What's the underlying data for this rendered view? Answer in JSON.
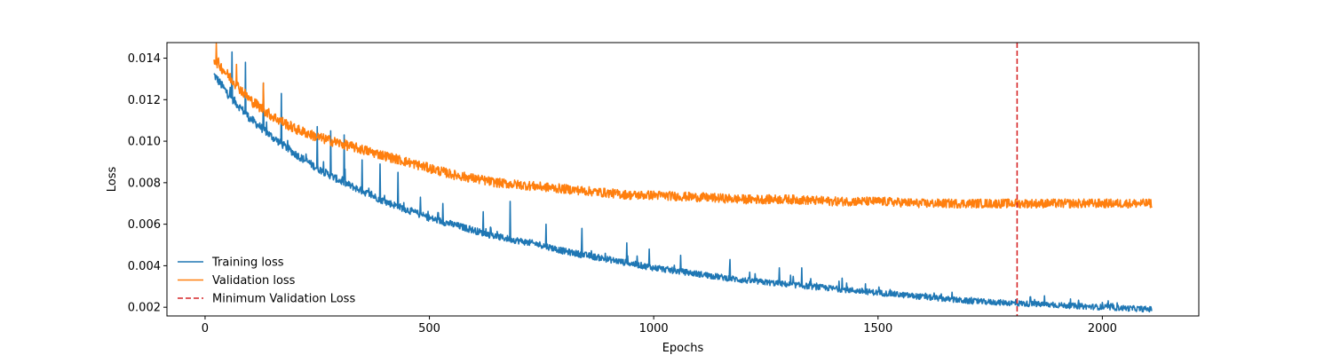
{
  "chart_data": {
    "type": "line",
    "title": "",
    "xlabel": "Epochs",
    "ylabel": "Loss",
    "xlim": [
      -85,
      2215
    ],
    "ylim": [
      0.00158,
      0.01475
    ],
    "x_ticks": [
      0,
      500,
      1000,
      1500,
      2000
    ],
    "x_tick_labels": [
      "0",
      "500",
      "1000",
      "1500",
      "2000"
    ],
    "y_ticks": [
      0.002,
      0.004,
      0.006,
      0.008,
      0.01,
      0.012,
      0.014
    ],
    "y_tick_labels": [
      "0.002",
      "0.004",
      "0.006",
      "0.008",
      "0.010",
      "0.012",
      "0.014"
    ],
    "grid": false,
    "legend": {
      "placement": "lower-left",
      "frame": false,
      "entries": [
        {
          "label": "Training loss",
          "color": "#1f77b4",
          "style": "solid"
        },
        {
          "label": "Validation loss",
          "color": "#ff7f0e",
          "style": "solid"
        },
        {
          "label": "Minimum Validation Loss",
          "color": "#d62728",
          "style": "dashed"
        }
      ]
    },
    "series": [
      {
        "name": "Training loss",
        "color": "#1f77b4",
        "x": [
          20,
          50,
          100,
          150,
          200,
          250,
          300,
          350,
          400,
          450,
          500,
          550,
          600,
          650,
          700,
          750,
          800,
          850,
          900,
          950,
          1000,
          1100,
          1200,
          1300,
          1400,
          1500,
          1600,
          1700,
          1800,
          1900,
          2000,
          2110
        ],
        "y": [
          0.0132,
          0.0123,
          0.0111,
          0.0102,
          0.0094,
          0.0087,
          0.0081,
          0.0076,
          0.0071,
          0.0067,
          0.0063,
          0.006,
          0.0057,
          0.0054,
          0.0052,
          0.005,
          0.0047,
          0.0045,
          0.0043,
          0.0041,
          0.0039,
          0.0036,
          0.0033,
          0.0031,
          0.0029,
          0.0027,
          0.0025,
          0.0023,
          0.0022,
          0.0021,
          0.002,
          0.0019
        ],
        "noise_amplitude": 0.00022,
        "spikes": [
          [
            60,
            0.0143
          ],
          [
            90,
            0.0138
          ],
          [
            130,
            0.0128
          ],
          [
            170,
            0.0123
          ],
          [
            250,
            0.0107
          ],
          [
            280,
            0.0105
          ],
          [
            310,
            0.0103
          ],
          [
            350,
            0.0091
          ],
          [
            390,
            0.0089
          ],
          [
            430,
            0.0085
          ],
          [
            480,
            0.0073
          ],
          [
            530,
            0.007
          ],
          [
            620,
            0.0066
          ],
          [
            680,
            0.0071
          ],
          [
            760,
            0.006
          ],
          [
            840,
            0.0058
          ],
          [
            940,
            0.0051
          ],
          [
            990,
            0.0048
          ],
          [
            1060,
            0.0045
          ],
          [
            1170,
            0.0043
          ],
          [
            1280,
            0.0039
          ],
          [
            1330,
            0.0039
          ],
          [
            1420,
            0.0034
          ],
          [
            1840,
            0.0025
          ]
        ]
      },
      {
        "name": "Validation loss",
        "color": "#ff7f0e",
        "x": [
          20,
          50,
          100,
          150,
          200,
          250,
          300,
          350,
          400,
          450,
          500,
          550,
          600,
          650,
          700,
          750,
          800,
          850,
          900,
          950,
          1000,
          1100,
          1200,
          1300,
          1400,
          1500,
          1600,
          1700,
          1800,
          1900,
          2000,
          2110
        ],
        "y": [
          0.014,
          0.0132,
          0.012,
          0.0112,
          0.0106,
          0.0102,
          0.0099,
          0.0096,
          0.0093,
          0.009,
          0.0087,
          0.0084,
          0.0082,
          0.008,
          0.0079,
          0.0078,
          0.0077,
          0.0076,
          0.0075,
          0.0074,
          0.0074,
          0.0073,
          0.0072,
          0.0072,
          0.0071,
          0.0071,
          0.007,
          0.007,
          0.007,
          0.007,
          0.007,
          0.007
        ],
        "noise_amplitude": 0.00028,
        "spikes": [
          [
            25,
            0.0147
          ],
          [
            70,
            0.0137
          ],
          [
            130,
            0.0128
          ]
        ]
      }
    ],
    "vertical_line": {
      "name": "Minimum Validation Loss",
      "x": 1810,
      "color": "#d62728",
      "style": "dashed"
    }
  }
}
